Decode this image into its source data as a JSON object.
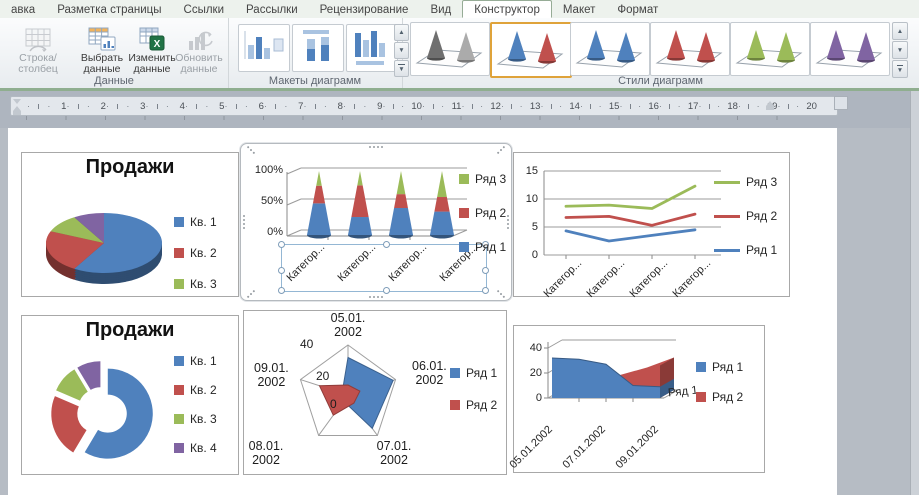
{
  "colors": {
    "blue": "#4F81BD",
    "red": "#C0504D",
    "green": "#9BBB59",
    "purple": "#8064A2"
  },
  "ribbon": {
    "tabs": [
      {
        "label": "авка",
        "active": false
      },
      {
        "label": "Разметка страницы",
        "active": false
      },
      {
        "label": "Ссылки",
        "active": false
      },
      {
        "label": "Рассылки",
        "active": false
      },
      {
        "label": "Рецензирование",
        "active": false
      },
      {
        "label": "Вид",
        "active": false
      },
      {
        "label": "Конструктор",
        "active": true
      },
      {
        "label": "Макет",
        "active": false
      },
      {
        "label": "Формат",
        "active": false
      }
    ],
    "icons": {
      "up": "▲",
      "down": "▼",
      "more": "▼",
      "excel_badge": "X"
    },
    "groups": {
      "data": {
        "label": "Данные",
        "buttons": [
          {
            "name": "row-column-button",
            "icon": "table-switch-icon",
            "lines": [
              "Строка/столбец"
            ],
            "disabled": true
          },
          {
            "name": "select-data-button",
            "icon": "select-data-icon",
            "lines": [
              "Выбрать",
              "данные"
            ],
            "disabled": false
          },
          {
            "name": "edit-data-button",
            "icon": "edit-data-icon",
            "lines": [
              "Изменить",
              "данные"
            ],
            "disabled": false
          },
          {
            "name": "refresh-data-button",
            "icon": "refresh-data-icon",
            "lines": [
              "Обновить",
              "данные"
            ],
            "disabled": true
          }
        ]
      },
      "layouts": {
        "label": "Макеты диаграмм",
        "count": 3
      },
      "styles": {
        "label": "Стили диаграмм",
        "items": [
          {
            "name": "chart-style-1",
            "c1": "#6f6f6f",
            "c2": "#ababab",
            "selected": false
          },
          {
            "name": "chart-style-2",
            "c1": "#4F81BD",
            "c2": "#C0504D",
            "selected": true
          },
          {
            "name": "chart-style-3",
            "c1": "#4F81BD",
            "c2": "#4F81BD",
            "selected": false
          },
          {
            "name": "chart-style-4",
            "c1": "#C0504D",
            "c2": "#C0504D",
            "selected": false
          },
          {
            "name": "chart-style-5",
            "c1": "#9BBB59",
            "c2": "#9BBB59",
            "selected": false
          },
          {
            "name": "chart-style-6",
            "c1": "#8064A2",
            "c2": "#8064A2",
            "selected": false
          }
        ]
      }
    }
  },
  "ruler": {
    "numbers": [
      1,
      2,
      3,
      4,
      5,
      6,
      7,
      8,
      9,
      10,
      11,
      12,
      13,
      14,
      15,
      16,
      17,
      18,
      19,
      20
    ],
    "dot": "·"
  },
  "charts": [
    {
      "name": "pie-3d",
      "title": "Продажи",
      "legend": [
        {
          "label": "Кв. 1",
          "color": "#4F81BD"
        },
        {
          "label": "Кв. 2",
          "color": "#C0504D"
        },
        {
          "label": "Кв. 3",
          "color": "#9BBB59"
        }
      ],
      "chart_data": {
        "type": "pie",
        "subtype": "3d",
        "title": "Продажи",
        "labels": [
          "Кв. 1",
          "Кв. 2",
          "Кв. 3",
          "Кв. 4"
        ],
        "values": [
          8.2,
          3.2,
          1.4,
          1.2
        ],
        "colors": [
          "#4F81BD",
          "#C0504D",
          "#9BBB59",
          "#8064A2"
        ],
        "legend_position": "right"
      }
    },
    {
      "name": "cone-100-stacked",
      "selected": true,
      "legend": [
        {
          "label": "Ряд 3",
          "color": "#9BBB59"
        },
        {
          "label": "Ряд 2",
          "color": "#C0504D"
        },
        {
          "label": "Ряд 1",
          "color": "#4F81BD"
        }
      ],
      "chart_data": {
        "type": "bar",
        "subtype": "cone-100%-stacked-3d",
        "categories": [
          "Категор...",
          "Категор...",
          "Категор...",
          "Категор..."
        ],
        "series": [
          {
            "name": "Ряд 1",
            "color": "#4F81BD",
            "values": [
              4.3,
              2.5,
              3.5,
              4.5
            ]
          },
          {
            "name": "Ряд 2",
            "color": "#C0504D",
            "values": [
              2.4,
              4.4,
              1.8,
              2.8
            ]
          },
          {
            "name": "Ряд 3",
            "color": "#9BBB59",
            "values": [
              2.0,
              2.0,
              3.0,
              5.0
            ]
          }
        ],
        "yticks": [
          "0%",
          "50%",
          "100%"
        ],
        "grid": true,
        "legend_position": "right"
      }
    },
    {
      "name": "line-stacked",
      "legend": [
        {
          "label": "Ряд 3",
          "color": "#9BBB59"
        },
        {
          "label": "Ряд 2",
          "color": "#C0504D"
        },
        {
          "label": "Ряд 1",
          "color": "#4F81BD"
        }
      ],
      "chart_data": {
        "type": "line",
        "subtype": "stacked",
        "categories": [
          "Категор...",
          "Категор...",
          "Категор...",
          "Категор..."
        ],
        "series": [
          {
            "name": "Ряд 1",
            "color": "#4F81BD",
            "values": [
              4.3,
              2.5,
              3.5,
              4.5
            ]
          },
          {
            "name": "Ряд 2",
            "color": "#C0504D",
            "values": [
              2.4,
              4.4,
              1.8,
              2.8
            ]
          },
          {
            "name": "Ряд 3",
            "color": "#9BBB59",
            "values": [
              2.0,
              2.0,
              3.0,
              5.0
            ]
          }
        ],
        "yticks": [
          0,
          5,
          10,
          15
        ],
        "ylim": [
          0,
          15
        ],
        "grid": true,
        "legend_position": "right"
      }
    },
    {
      "name": "doughnut-exploded",
      "title": "Продажи",
      "legend": [
        {
          "label": "Кв. 1",
          "color": "#4F81BD"
        },
        {
          "label": "Кв. 2",
          "color": "#C0504D"
        },
        {
          "label": "Кв. 3",
          "color": "#9BBB59"
        },
        {
          "label": "Кв. 4",
          "color": "#8064A2"
        }
      ],
      "chart_data": {
        "type": "pie",
        "subtype": "doughnut-exploded",
        "title": "Продажи",
        "labels": [
          "Кв. 1",
          "Кв. 2",
          "Кв. 3",
          "Кв. 4"
        ],
        "values": [
          8.2,
          3.2,
          1.4,
          1.2
        ],
        "colors": [
          "#4F81BD",
          "#C0504D",
          "#9BBB59",
          "#8064A2"
        ],
        "legend_position": "right"
      }
    },
    {
      "name": "radar-filled",
      "legend": [
        {
          "label": "Ряд 1",
          "color": "#4F81BD"
        },
        {
          "label": "Ряд 2",
          "color": "#C0504D"
        }
      ],
      "chart_data": {
        "type": "radar",
        "subtype": "filled",
        "categories": [
          "05.01.2002",
          "06.01.2002",
          "07.01.2002",
          "08.01.2002",
          "09.01.2002"
        ],
        "series": [
          {
            "name": "Ряд 1",
            "color": "#4F81BD",
            "values": [
              30,
              38,
              33,
              6,
              5
            ]
          },
          {
            "name": "Ряд 2",
            "color": "#C0504D",
            "values": [
              8,
              10,
              8,
              20,
              24
            ]
          }
        ],
        "rticks": [
          40,
          20,
          0
        ],
        "rmax": 40,
        "legend_position": "right"
      }
    },
    {
      "name": "area-3d",
      "legend": [
        {
          "label": "Ряд 1",
          "color": "#4F81BD"
        },
        {
          "label": "Ряд 2",
          "color": "#C0504D"
        }
      ],
      "chart_data": {
        "type": "area",
        "subtype": "3d",
        "categories": [
          "05.01.2002",
          "06.01.2002",
          "07.01.2002",
          "08.01.2002",
          "09.01.2002"
        ],
        "x_labels_shown": [
          "05.01.2002",
          "07.01.2002",
          "09.01.2002"
        ],
        "series": [
          {
            "name": "Ряд 1",
            "color": "#4F81BD",
            "values": [
              32,
              31,
              27,
              10,
              9
            ]
          },
          {
            "name": "Ряд 2",
            "color": "#C0504D",
            "values": [
              5,
              8,
              12,
              18,
              26
            ]
          }
        ],
        "yticks": [
          0,
          20,
          40
        ],
        "ylim": [
          0,
          40
        ],
        "depth_label": "Ряд 1",
        "legend_position": "right"
      }
    }
  ]
}
